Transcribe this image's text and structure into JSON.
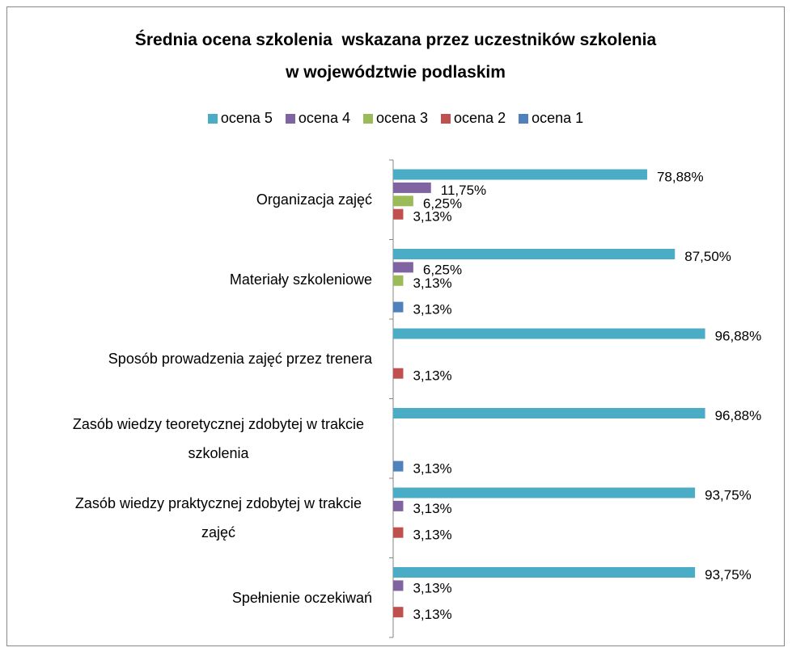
{
  "chart_data": {
    "type": "hbar",
    "title": "Średnia ocena szkolenia  wskazana przez uczestników szkolenia\nw województwie podlaskim",
    "categories": [
      "Organizacja zajęć",
      "Materiały szkoleniowe",
      "Sposób prowadzenia zajęć przez trenera",
      "Zasób wiedzy teoretycznej zdobytej w trakcie szkolenia",
      "Zasób wiedzy praktycznej zdobytej w trakcie zajęć",
      "Spełnienie oczekiwań"
    ],
    "series": [
      {
        "name": "ocena 5",
        "color": "#4bacc6",
        "values": [
          78.88,
          87.5,
          96.88,
          96.88,
          93.75,
          93.75
        ],
        "value_labels": [
          "78,88%",
          "87,50%",
          "96,88%",
          "96,88%",
          "93,75%",
          "93,75%"
        ]
      },
      {
        "name": "ocena 4",
        "color": "#8064a2",
        "values": [
          11.75,
          6.25,
          null,
          null,
          3.13,
          3.13
        ],
        "value_labels": [
          "11,75%",
          "6,25%",
          null,
          null,
          "3,13%",
          "3,13%"
        ]
      },
      {
        "name": "ocena 3",
        "color": "#9bbb59",
        "values": [
          6.25,
          3.13,
          null,
          null,
          null,
          null
        ],
        "value_labels": [
          "6,25%",
          "3,13%",
          null,
          null,
          null,
          null
        ]
      },
      {
        "name": "ocena 2",
        "color": "#c0504d",
        "values": [
          3.13,
          null,
          3.13,
          null,
          3.13,
          3.13
        ],
        "value_labels": [
          "3,13%",
          null,
          "3,13%",
          null,
          "3,13%",
          "3,13%"
        ]
      },
      {
        "name": "ocena 1",
        "color": "#4f81bd",
        "values": [
          null,
          3.13,
          null,
          3.13,
          null,
          null
        ],
        "value_labels": [
          null,
          "3,13%",
          null,
          "3,13%",
          null,
          null
        ]
      }
    ],
    "legend": "top"
  }
}
